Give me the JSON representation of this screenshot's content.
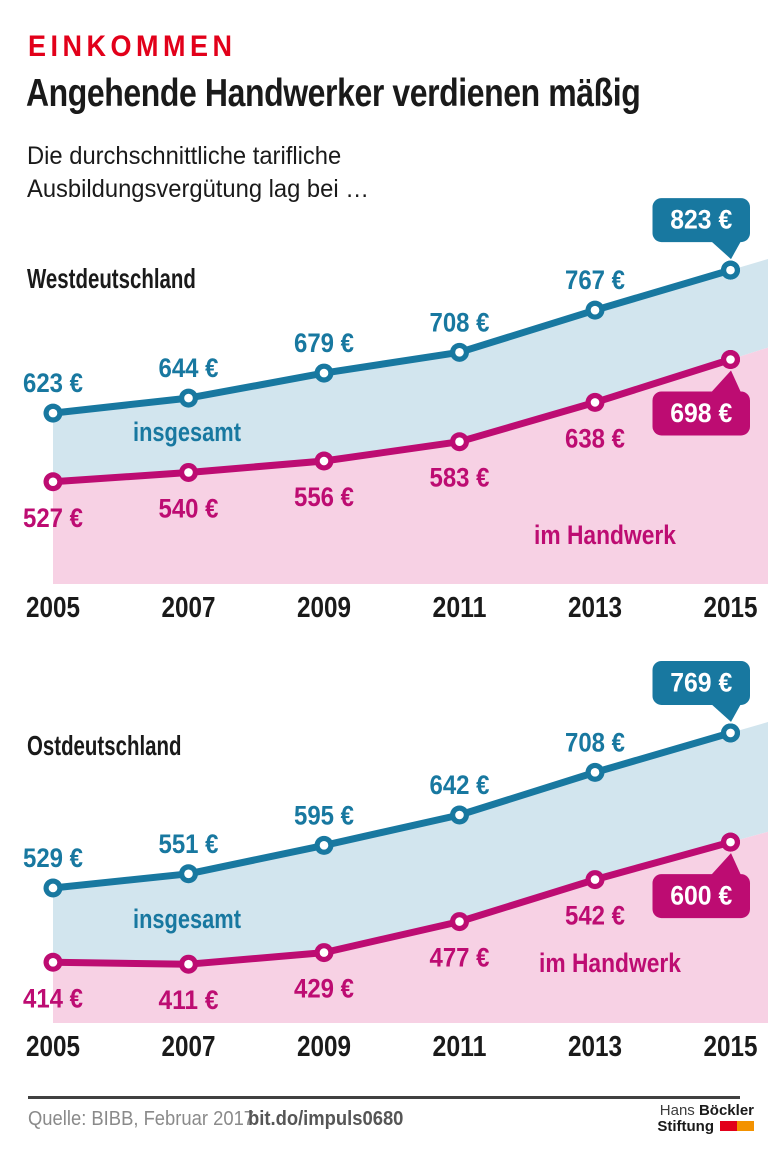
{
  "kicker": "EINKOMMEN",
  "title": "Angehende Handwerker verdienen mäßig",
  "subtitle_lines": [
    "Die durchschnittliche tarifliche",
    "Ausbildungsvergütung lag bei …"
  ],
  "colors": {
    "kicker_red": "#e2001a",
    "teal": "#1878a0",
    "teal_fill": "#d2e5ee",
    "magenta": "#bd0c72",
    "magenta_fill": "#f7d1e4",
    "text_black": "#1a1a1a",
    "source_gray": "#8a8a8a",
    "logo_flag_red": "#e2001a",
    "logo_flag_orange": "#f39200"
  },
  "chart_data": [
    {
      "type": "area",
      "title": "Westdeutschland",
      "categories": [
        "2005",
        "2007",
        "2009",
        "2011",
        "2013",
        "2015"
      ],
      "unit": "€",
      "legend_position": "inside",
      "grid": false,
      "series": [
        {
          "name": "insgesamt",
          "color": "#1878a0",
          "fill": "#d2e5ee",
          "values": [
            623,
            644,
            679,
            708,
            767,
            823
          ],
          "callout_last": "823 €"
        },
        {
          "name": "im Handwerk",
          "color": "#bd0c72",
          "fill": "#f7d1e4",
          "values": [
            527,
            540,
            556,
            583,
            638,
            698
          ],
          "callout_last": "698 €"
        }
      ]
    },
    {
      "type": "area",
      "title": "Ostdeutschland",
      "categories": [
        "2005",
        "2007",
        "2009",
        "2011",
        "2013",
        "2015"
      ],
      "unit": "€",
      "legend_position": "inside",
      "grid": false,
      "series": [
        {
          "name": "insgesamt",
          "color": "#1878a0",
          "fill": "#d2e5ee",
          "values": [
            529,
            551,
            595,
            642,
            708,
            769
          ],
          "callout_last": "769 €"
        },
        {
          "name": "im Handwerk",
          "color": "#bd0c72",
          "fill": "#f7d1e4",
          "values": [
            414,
            411,
            429,
            477,
            542,
            600
          ],
          "callout_last": "600 €"
        }
      ]
    }
  ],
  "footer": {
    "source": "Quelle: BIBB, Februar 2017",
    "link": "bit.do/impuls0680",
    "logo": {
      "word1": "Hans",
      "word2": "Böckler",
      "word3": "Stiftung"
    }
  }
}
